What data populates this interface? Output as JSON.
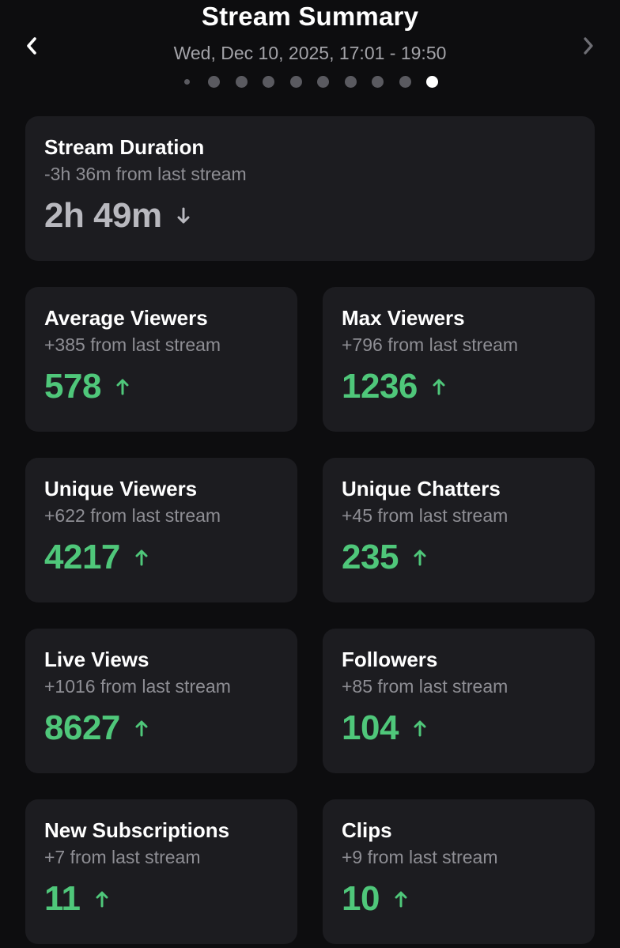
{
  "header": {
    "title": "Stream Summary",
    "subtitle": "Wed, Dec 10, 2025, 17:01 - 19:50",
    "prev_icon": "chevron-left-icon",
    "next_icon": "chevron-right-icon",
    "page_count": 10,
    "active_page": 10
  },
  "colors": {
    "background": "#0d0d0f",
    "card": "#1c1c20",
    "positive": "#4fc77a",
    "negative": "#b8b8be",
    "muted_text": "#8e8e94"
  },
  "stats": {
    "duration": {
      "title": "Stream Duration",
      "delta": "-3h 36m from last stream",
      "value": "2h 49m",
      "trend": "down",
      "trend_icon": "arrow-down-icon"
    },
    "average_viewers": {
      "title": "Average Viewers",
      "delta": "+385 from last stream",
      "value": "578",
      "trend": "up",
      "trend_icon": "arrow-up-icon"
    },
    "max_viewers": {
      "title": "Max Viewers",
      "delta": "+796 from last stream",
      "value": "1236",
      "trend": "up",
      "trend_icon": "arrow-up-icon"
    },
    "unique_viewers": {
      "title": "Unique Viewers",
      "delta": "+622 from last stream",
      "value": "4217",
      "trend": "up",
      "trend_icon": "arrow-up-icon"
    },
    "unique_chatters": {
      "title": "Unique Chatters",
      "delta": "+45 from last stream",
      "value": "235",
      "trend": "up",
      "trend_icon": "arrow-up-icon"
    },
    "live_views": {
      "title": "Live Views",
      "delta": "+1016 from last stream",
      "value": "8627",
      "trend": "up",
      "trend_icon": "arrow-up-icon"
    },
    "followers": {
      "title": "Followers",
      "delta": "+85 from last stream",
      "value": "104",
      "trend": "up",
      "trend_icon": "arrow-up-icon"
    },
    "new_subscriptions": {
      "title": "New Subscriptions",
      "delta": "+7 from last stream",
      "value": "11",
      "trend": "up",
      "trend_icon": "arrow-up-icon"
    },
    "clips": {
      "title": "Clips",
      "delta": "+9 from last stream",
      "value": "10",
      "trend": "up",
      "trend_icon": "arrow-up-icon"
    }
  }
}
